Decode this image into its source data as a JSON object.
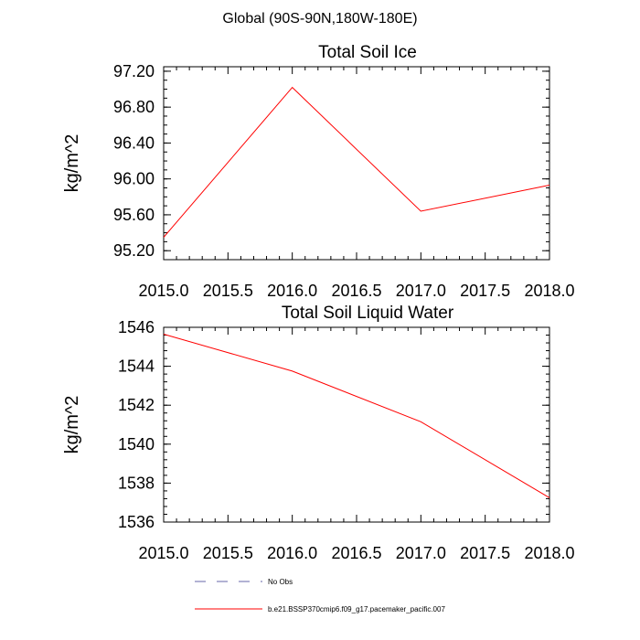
{
  "figure": {
    "suptitle": "Global (90S-90N,180W-180E)"
  },
  "chart_data": [
    {
      "type": "line",
      "title": "Total Soil Ice",
      "xlabel": "",
      "ylabel": "kg/m^2",
      "xlim": [
        2015.0,
        2018.0
      ],
      "ylim": [
        95.1,
        97.25
      ],
      "x_ticks": [
        2015.0,
        2015.5,
        2016.0,
        2016.5,
        2017.0,
        2017.5,
        2018.0
      ],
      "x_tick_labels": [
        "2015.0",
        "2015.5",
        "2016.0",
        "2016.5",
        "2017.0",
        "2017.5",
        "2018.0"
      ],
      "y_ticks": [
        95.2,
        95.6,
        96.0,
        96.4,
        96.8,
        97.2
      ],
      "y_tick_labels": [
        "95.20",
        "95.60",
        "96.00",
        "96.40",
        "96.80",
        "97.20"
      ],
      "grid": false,
      "series": [
        {
          "name": "b.e21.BSSP370cmip6.f09_g17.pacemaker_pacific.007",
          "color": "#ff0000",
          "x": [
            2015.0,
            2016.0,
            2017.0,
            2018.0
          ],
          "y": [
            95.35,
            97.02,
            95.64,
            95.93
          ]
        }
      ]
    },
    {
      "type": "line",
      "title": "Total Soil Liquid Water",
      "xlabel": "",
      "ylabel": "kg/m^2",
      "xlim": [
        2015.0,
        2018.0
      ],
      "ylim": [
        1536.0,
        1546.0
      ],
      "x_ticks": [
        2015.0,
        2015.5,
        2016.0,
        2016.5,
        2017.0,
        2017.5,
        2018.0
      ],
      "x_tick_labels": [
        "2015.0",
        "2015.5",
        "2016.0",
        "2016.5",
        "2017.0",
        "2017.5",
        "2018.0"
      ],
      "y_ticks": [
        1536,
        1538,
        1540,
        1542,
        1544,
        1546
      ],
      "y_tick_labels": [
        "1536",
        "1538",
        "1540",
        "1542",
        "1544",
        "1546"
      ],
      "grid": false,
      "series": [
        {
          "name": "b.e21.BSSP370cmip6.f09_g17.pacemaker_pacific.007",
          "color": "#ff0000",
          "x": [
            2015.0,
            2016.0,
            2017.0,
            2018.0
          ],
          "y": [
            1545.65,
            1543.75,
            1541.15,
            1537.25
          ]
        }
      ]
    }
  ],
  "legend": {
    "placement": "bottom",
    "items": [
      {
        "label": "No Obs",
        "color": "#6666aa",
        "style": "dashed"
      },
      {
        "label": "b.e21.BSSP370cmip6.f09_g17.pacemaker_pacific.007",
        "color": "#ff0000",
        "style": "solid"
      }
    ]
  }
}
